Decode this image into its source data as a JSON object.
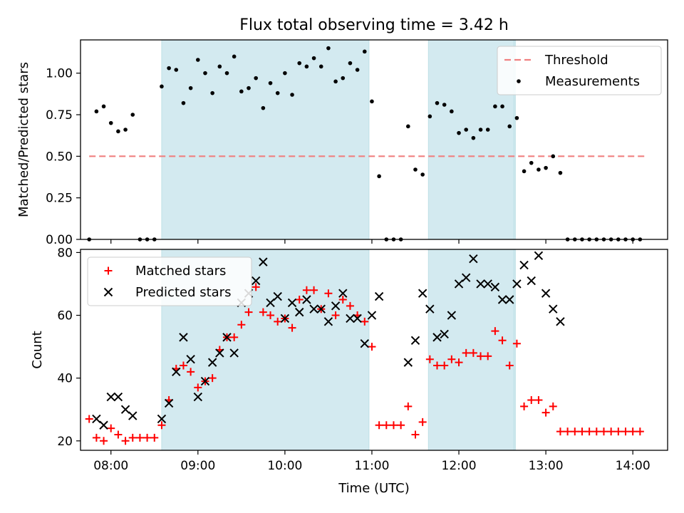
{
  "chart_data": [
    {
      "type": "scatter",
      "title": "Flux total observing time = 3.42 h",
      "xlabel": "",
      "ylabel": "Matched/Predicted stars",
      "xlim": [
        "07:39",
        "14:24"
      ],
      "ylim": [
        0,
        1.2
      ],
      "yticks": [
        "0.00",
        "0.25",
        "0.50",
        "0.75",
        "1.00"
      ],
      "ytick_values": [
        0,
        0.25,
        0.5,
        0.75,
        1.0
      ],
      "grid": false,
      "legend_position": "top-right",
      "shaded_intervals": [
        [
          "08:35",
          "10:58"
        ],
        [
          "11:39",
          "12:38"
        ],
        [
          "12:38",
          "12:39"
        ]
      ],
      "shade_color": "#d3eaf0",
      "threshold": {
        "name": "Threshold",
        "value": 0.5,
        "x_range": [
          "07:45",
          "14:09"
        ],
        "color": "#f08080",
        "style": "dashed"
      },
      "series": [
        {
          "name": "Measurements",
          "marker": "dot",
          "color": "#000000",
          "points": [
            [
              "07:45",
              0.0
            ],
            [
              "07:50",
              0.77
            ],
            [
              "07:55",
              0.8
            ],
            [
              "08:00",
              0.7
            ],
            [
              "08:05",
              0.65
            ],
            [
              "08:10",
              0.66
            ],
            [
              "08:15",
              0.75
            ],
            [
              "08:20",
              0.0
            ],
            [
              "08:25",
              0.0
            ],
            [
              "08:30",
              0.0
            ],
            [
              "08:35",
              0.92
            ],
            [
              "08:40",
              1.03
            ],
            [
              "08:45",
              1.02
            ],
            [
              "08:50",
              0.82
            ],
            [
              "08:55",
              0.91
            ],
            [
              "09:00",
              1.08
            ],
            [
              "09:05",
              1.0
            ],
            [
              "09:10",
              0.88
            ],
            [
              "09:15",
              1.04
            ],
            [
              "09:20",
              1.0
            ],
            [
              "09:25",
              1.1
            ],
            [
              "09:30",
              0.89
            ],
            [
              "09:35",
              0.91
            ],
            [
              "09:40",
              0.97
            ],
            [
              "09:45",
              0.79
            ],
            [
              "09:50",
              0.94
            ],
            [
              "09:55",
              0.88
            ],
            [
              "10:00",
              1.0
            ],
            [
              "10:05",
              0.87
            ],
            [
              "10:10",
              1.06
            ],
            [
              "10:15",
              1.04
            ],
            [
              "10:20",
              1.09
            ],
            [
              "10:25",
              1.04
            ],
            [
              "10:30",
              1.15
            ],
            [
              "10:35",
              0.95
            ],
            [
              "10:40",
              0.97
            ],
            [
              "10:45",
              1.06
            ],
            [
              "10:50",
              1.02
            ],
            [
              "10:55",
              1.13
            ],
            [
              "11:00",
              0.83
            ],
            [
              "11:05",
              0.38
            ],
            [
              "11:10",
              0.0
            ],
            [
              "11:15",
              0.0
            ],
            [
              "11:20",
              0.0
            ],
            [
              "11:25",
              0.68
            ],
            [
              "11:30",
              0.42
            ],
            [
              "11:35",
              0.39
            ],
            [
              "11:40",
              0.74
            ],
            [
              "11:45",
              0.82
            ],
            [
              "11:50",
              0.81
            ],
            [
              "11:55",
              0.77
            ],
            [
              "12:00",
              0.64
            ],
            [
              "12:05",
              0.66
            ],
            [
              "12:10",
              0.61
            ],
            [
              "12:15",
              0.66
            ],
            [
              "12:20",
              0.66
            ],
            [
              "12:25",
              0.8
            ],
            [
              "12:30",
              0.8
            ],
            [
              "12:35",
              0.68
            ],
            [
              "12:40",
              0.73
            ],
            [
              "12:45",
              0.41
            ],
            [
              "12:50",
              0.46
            ],
            [
              "12:55",
              0.42
            ],
            [
              "13:00",
              0.43
            ],
            [
              "13:05",
              0.5
            ],
            [
              "13:10",
              0.4
            ],
            [
              "13:15",
              0.0
            ],
            [
              "13:20",
              0.0
            ],
            [
              "13:25",
              0.0
            ],
            [
              "13:30",
              0.0
            ],
            [
              "13:35",
              0.0
            ],
            [
              "13:40",
              0.0
            ],
            [
              "13:45",
              0.0
            ],
            [
              "13:50",
              0.0
            ],
            [
              "13:55",
              0.0
            ],
            [
              "14:00",
              0.0
            ],
            [
              "14:05",
              0.0
            ]
          ]
        }
      ]
    },
    {
      "type": "scatter",
      "title": "",
      "xlabel": "Time (UTC)",
      "ylabel": "Count",
      "xlim": [
        "07:39",
        "14:24"
      ],
      "ylim": [
        17,
        81
      ],
      "xticks": [
        "08:00",
        "09:00",
        "10:00",
        "11:00",
        "12:00",
        "13:00",
        "14:00"
      ],
      "yticks": [
        "20",
        "40",
        "60",
        "80"
      ],
      "ytick_values": [
        20,
        40,
        60,
        80
      ],
      "grid": false,
      "legend_position": "top-left",
      "series": [
        {
          "name": "Matched stars",
          "marker": "plus",
          "color": "#ff0000",
          "points": [
            [
              "07:45",
              27
            ],
            [
              "07:50",
              21
            ],
            [
              "07:55",
              20
            ],
            [
              "08:00",
              24
            ],
            [
              "08:05",
              22
            ],
            [
              "08:10",
              20
            ],
            [
              "08:15",
              21
            ],
            [
              "08:20",
              21
            ],
            [
              "08:25",
              21
            ],
            [
              "08:30",
              21
            ],
            [
              "08:35",
              25
            ],
            [
              "08:40",
              33
            ],
            [
              "08:45",
              43
            ],
            [
              "08:50",
              44
            ],
            [
              "08:55",
              42
            ],
            [
              "09:00",
              37
            ],
            [
              "09:05",
              39
            ],
            [
              "09:10",
              40
            ],
            [
              "09:15",
              49
            ],
            [
              "09:20",
              53
            ],
            [
              "09:25",
              53
            ],
            [
              "09:30",
              57
            ],
            [
              "09:35",
              61
            ],
            [
              "09:40",
              69
            ],
            [
              "09:45",
              61
            ],
            [
              "09:50",
              60
            ],
            [
              "09:55",
              58
            ],
            [
              "10:00",
              59
            ],
            [
              "10:05",
              56
            ],
            [
              "10:10",
              65
            ],
            [
              "10:15",
              68
            ],
            [
              "10:20",
              68
            ],
            [
              "10:25",
              62
            ],
            [
              "10:30",
              67
            ],
            [
              "10:35",
              60
            ],
            [
              "10:40",
              65
            ],
            [
              "10:45",
              63
            ],
            [
              "10:50",
              60
            ],
            [
              "10:55",
              58
            ],
            [
              "11:00",
              50
            ],
            [
              "11:05",
              25
            ],
            [
              "11:10",
              25
            ],
            [
              "11:15",
              25
            ],
            [
              "11:20",
              25
            ],
            [
              "11:25",
              31
            ],
            [
              "11:30",
              22
            ],
            [
              "11:35",
              26
            ],
            [
              "11:40",
              46
            ],
            [
              "11:45",
              44
            ],
            [
              "11:50",
              44
            ],
            [
              "11:55",
              46
            ],
            [
              "12:00",
              45
            ],
            [
              "12:05",
              48
            ],
            [
              "12:10",
              48
            ],
            [
              "12:15",
              47
            ],
            [
              "12:20",
              47
            ],
            [
              "12:25",
              55
            ],
            [
              "12:30",
              52
            ],
            [
              "12:35",
              44
            ],
            [
              "12:40",
              51
            ],
            [
              "12:45",
              31
            ],
            [
              "12:50",
              33
            ],
            [
              "12:55",
              33
            ],
            [
              "13:00",
              29
            ],
            [
              "13:05",
              31
            ],
            [
              "13:10",
              23
            ],
            [
              "13:15",
              23
            ],
            [
              "13:20",
              23
            ],
            [
              "13:25",
              23
            ],
            [
              "13:30",
              23
            ],
            [
              "13:35",
              23
            ],
            [
              "13:40",
              23
            ],
            [
              "13:45",
              23
            ],
            [
              "13:50",
              23
            ],
            [
              "13:55",
              23
            ],
            [
              "14:00",
              23
            ],
            [
              "14:05",
              23
            ]
          ]
        },
        {
          "name": "Predicted stars",
          "marker": "x",
          "color": "#000000",
          "points": [
            [
              "07:50",
              27
            ],
            [
              "07:55",
              25
            ],
            [
              "08:00",
              34
            ],
            [
              "08:05",
              34
            ],
            [
              "08:10",
              30
            ],
            [
              "08:15",
              28
            ],
            [
              "08:35",
              27
            ],
            [
              "08:40",
              32
            ],
            [
              "08:45",
              42
            ],
            [
              "08:50",
              53
            ],
            [
              "08:55",
              46
            ],
            [
              "09:00",
              34
            ],
            [
              "09:05",
              39
            ],
            [
              "09:10",
              45
            ],
            [
              "09:15",
              48
            ],
            [
              "09:20",
              53
            ],
            [
              "09:25",
              48
            ],
            [
              "09:30",
              64
            ],
            [
              "09:35",
              67
            ],
            [
              "09:40",
              71
            ],
            [
              "09:45",
              77
            ],
            [
              "09:50",
              64
            ],
            [
              "09:55",
              66
            ],
            [
              "10:00",
              59
            ],
            [
              "10:05",
              64
            ],
            [
              "10:10",
              61
            ],
            [
              "10:15",
              65
            ],
            [
              "10:20",
              62
            ],
            [
              "10:25",
              62
            ],
            [
              "10:30",
              58
            ],
            [
              "10:35",
              63
            ],
            [
              "10:40",
              67
            ],
            [
              "10:45",
              59
            ],
            [
              "10:50",
              59
            ],
            [
              "10:55",
              51
            ],
            [
              "11:00",
              60
            ],
            [
              "11:05",
              66
            ],
            [
              "11:25",
              45
            ],
            [
              "11:30",
              52
            ],
            [
              "11:35",
              67
            ],
            [
              "11:40",
              62
            ],
            [
              "11:45",
              53
            ],
            [
              "11:50",
              54
            ],
            [
              "11:55",
              60
            ],
            [
              "12:00",
              70
            ],
            [
              "12:05",
              72
            ],
            [
              "12:10",
              78
            ],
            [
              "12:15",
              70
            ],
            [
              "12:20",
              70
            ],
            [
              "12:25",
              69
            ],
            [
              "12:30",
              65
            ],
            [
              "12:35",
              65
            ],
            [
              "12:40",
              70
            ],
            [
              "12:45",
              76
            ],
            [
              "12:50",
              71
            ],
            [
              "12:55",
              79
            ],
            [
              "13:00",
              67
            ],
            [
              "13:05",
              62
            ],
            [
              "13:10",
              58
            ]
          ]
        }
      ]
    }
  ]
}
